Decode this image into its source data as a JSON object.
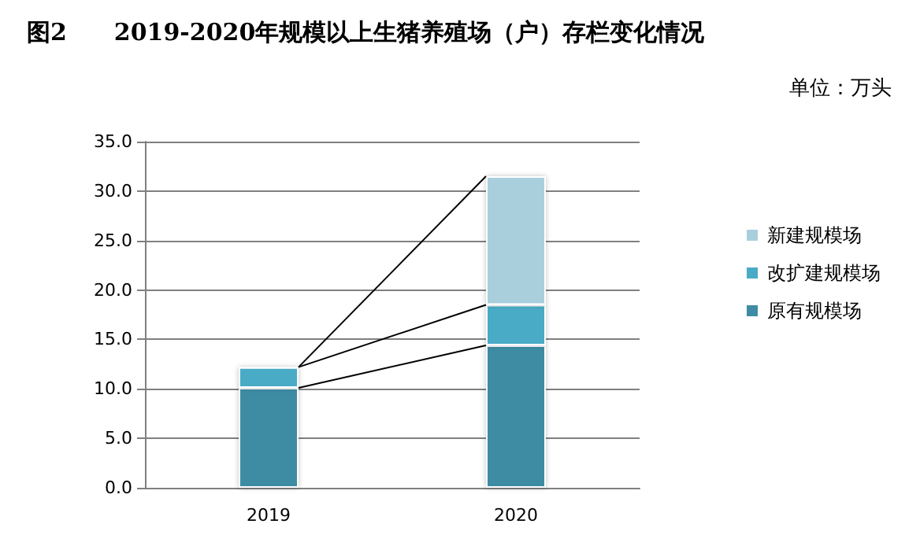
{
  "chart_data": {
    "type": "bar",
    "title": "图2　　2019-2020年规模以上生猪养殖场（户）存栏变化情况",
    "annotations": [
      "单位：万头"
    ],
    "categories": [
      "2019",
      "2020"
    ],
    "stacked": true,
    "series": [
      {
        "name": "原有规模场",
        "color": "#3e8ca4",
        "values": [
          10.1,
          14.4
        ]
      },
      {
        "name": "改扩建规模场",
        "color": "#4aabc6",
        "values": [
          2.1,
          4.1
        ]
      },
      {
        "name": "新建规模场",
        "color": "#a9cfdd",
        "values": [
          null,
          13.0
        ]
      }
    ],
    "ylim": [
      0,
      35
    ],
    "yticks": [
      {
        "value": 0,
        "label": "0.0"
      },
      {
        "value": 5,
        "label": "5.0"
      },
      {
        "value": 10,
        "label": "10.0"
      },
      {
        "value": 15,
        "label": "15.0"
      },
      {
        "value": 20,
        "label": "20.0"
      },
      {
        "value": 25,
        "label": "25.0"
      },
      {
        "value": 30,
        "label": "30.0"
      },
      {
        "value": 35,
        "label": "35.0"
      }
    ],
    "grid": "y",
    "legend": "right"
  }
}
